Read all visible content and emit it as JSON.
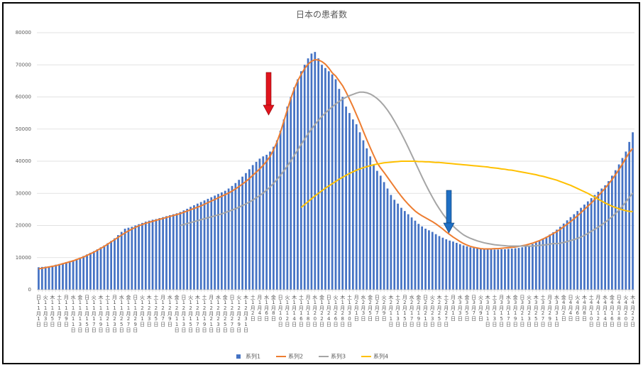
{
  "chart_data": {
    "type": "bar",
    "title": "日本の患者数",
    "categories": [
      "日11月1日",
      null,
      "火11月3日",
      null,
      "木11月5日",
      null,
      "土11月7日",
      null,
      "月11月9日",
      null,
      "水11月11日",
      null,
      "金11月13日",
      null,
      "日11月15日",
      null,
      "火11月17日",
      null,
      "木11月19日",
      null,
      "土11月21日",
      null,
      "月11月23日",
      null,
      "水11月25日",
      null,
      "金11月27日",
      null,
      "日11月29日",
      null,
      "火12月1日",
      null,
      "木12月3日",
      null,
      "土12月5日",
      null,
      "月12月7日",
      null,
      "水12月9日",
      null,
      "金12月11日",
      null,
      "日12月13日",
      null,
      "火12月15日",
      null,
      "木12月17日",
      null,
      "土12月19日",
      null,
      "月12月21日",
      null,
      "水12月23日",
      null,
      "金12月25日",
      null,
      "日12月27日",
      null,
      "火12月29日",
      null,
      "木12月31日",
      null,
      "土1月2日",
      null,
      "月1月4日",
      null,
      "水1月6日",
      null,
      "金1月8日",
      null,
      "日1月10日",
      null,
      "火1月12日",
      null,
      "木1月14日",
      null,
      "土1月16日",
      null,
      "月1月18日",
      null,
      "水1月20日",
      null,
      "金1月22日",
      null,
      "日1月24日",
      null,
      "火1月26日",
      null,
      "木1月28日",
      null,
      "土1月30日",
      null,
      "月2月1日",
      null,
      "水2月3日",
      null,
      "金2月5日",
      null,
      "日2月7日",
      null,
      "火2月9日",
      null,
      "木2月11日",
      null,
      "土2月13日",
      null,
      "月2月15日",
      null,
      "水2月17日",
      null,
      "金2月19日",
      null,
      "日2月21日",
      null,
      "火2月23日",
      null,
      "木2月25日",
      null,
      "土2月27日",
      null,
      "月3月1日",
      null,
      "水3月3日",
      null,
      "金3月5日",
      null,
      "日3月7日",
      null,
      "火3月9日",
      null,
      "木3月11日",
      null,
      "土3月13日",
      null,
      "月3月15日",
      null,
      "水3月17日",
      null,
      "金3月19日",
      null,
      "日3月21日",
      null,
      "火3月23日",
      null,
      "木3月25日",
      null,
      "土3月27日",
      null,
      "月3月29日",
      null,
      "水3月31日",
      null,
      "金4月2日",
      null,
      "日4月4日",
      null,
      "火4月6日",
      null,
      "木4月8日",
      null,
      "土4月10日",
      null,
      "月4月12日",
      null,
      "水4月14日",
      null,
      "金4月16日",
      null,
      "日4月18日",
      null,
      "火4月20日",
      null,
      "木4月22日"
    ],
    "series": [
      {
        "name": "系列1",
        "color": "#4472c4",
        "kind": "bar",
        "values": [
          7000,
          7100,
          7200,
          7300,
          7500,
          7800,
          8000,
          8300,
          8600,
          8900,
          9200,
          9600,
          10000,
          10500,
          11000,
          11500,
          12000,
          12600,
          13200,
          13800,
          14500,
          15200,
          16000,
          17000,
          18000,
          19000,
          19300,
          19600,
          20000,
          20400,
          20800,
          21200,
          21500,
          21800,
          22000,
          22300,
          22600,
          22900,
          23200,
          23500,
          23800,
          24200,
          24700,
          25200,
          25800,
          26300,
          26800,
          27300,
          27800,
          28300,
          28800,
          29300,
          29800,
          30300,
          30800,
          31500,
          32300,
          33200,
          34200,
          35200,
          36300,
          37500,
          38800,
          39800,
          40800,
          41500,
          42000,
          43000,
          44500,
          46500,
          49500,
          53000,
          57000,
          60000,
          63000,
          65500,
          68000,
          70000,
          72000,
          73500,
          74000,
          72000,
          70000,
          69000,
          68000,
          67000,
          65500,
          62500,
          60000,
          57000,
          55000,
          53000,
          51500,
          49000,
          46500,
          44000,
          41500,
          39000,
          37000,
          35500,
          33500,
          31500,
          29500,
          28000,
          26800,
          25500,
          24500,
          23500,
          22500,
          21500,
          20500,
          19700,
          19000,
          18500,
          18000,
          17300,
          16700,
          16200,
          15700,
          15300,
          15000,
          14600,
          14200,
          13800,
          13500,
          13200,
          13000,
          12900,
          12800,
          12700,
          12600,
          12500,
          12500,
          12500,
          12600,
          12600,
          12700,
          12800,
          12900,
          13000,
          13200,
          13500,
          13800,
          14200,
          14700,
          15200,
          15800,
          16500,
          17200,
          17900,
          18700,
          19600,
          20600,
          21600,
          22600,
          23500,
          24500,
          25500,
          26500,
          27500,
          28500,
          29500,
          30500,
          31500,
          32500,
          33800,
          35500,
          37200,
          39000,
          41000,
          43000,
          46000,
          49000
        ]
      },
      {
        "name": "系列2",
        "color": "#ed7d31",
        "kind": "line",
        "values": [
          6500,
          6700,
          6900,
          7100,
          7300,
          7500,
          7800,
          8100,
          8400,
          8700,
          9000,
          9400,
          9800,
          10200,
          10700,
          11200,
          11700,
          12300,
          12900,
          13500,
          14200,
          14900,
          15600,
          16300,
          17000,
          17700,
          18300,
          18900,
          19400,
          19900,
          20300,
          20700,
          21000,
          21300,
          21600,
          21900,
          22200,
          22500,
          22800,
          23100,
          23400,
          23700,
          24100,
          24500,
          24900,
          25300,
          25700,
          26100,
          26600,
          27100,
          27600,
          28100,
          28600,
          29100,
          29600,
          30100,
          30700,
          31400,
          32100,
          32900,
          33700,
          34600,
          35600,
          36600,
          37600,
          38700,
          40000,
          41500,
          43500,
          46000,
          49000,
          52500,
          56000,
          59500,
          62500,
          65000,
          67000,
          68800,
          70200,
          71100,
          71600,
          71500,
          71000,
          70200,
          69000,
          67500,
          66500,
          65000,
          63500,
          61500,
          59300,
          57000,
          54500,
          52000,
          49300,
          46700,
          44200,
          41800,
          39500,
          37900,
          36500,
          35000,
          33500,
          32000,
          30500,
          29100,
          27800,
          26600,
          25500,
          24500,
          23700,
          23000,
          22400,
          21800,
          21200,
          20500,
          19700,
          18900,
          18000,
          17200,
          16400,
          15700,
          15000,
          14400,
          13900,
          13500,
          13200,
          13000,
          12800,
          12700,
          12700,
          12700,
          12800,
          12800,
          12900,
          13000,
          13100,
          13200,
          13300,
          13500,
          13700,
          13900,
          14200,
          14500,
          14900,
          15300,
          15800,
          16300,
          16900,
          17500,
          18100,
          18800,
          19600,
          20400,
          21200,
          22100,
          23000,
          24000,
          25000,
          26000,
          27000,
          28100,
          29200,
          30400,
          31600,
          32900,
          34300,
          35800,
          37400,
          39100,
          40900,
          42700,
          44000
        ]
      },
      {
        "name": "系列3",
        "color": "#a5a5a5",
        "kind": "line",
        "values": [
          null,
          null,
          null,
          null,
          null,
          null,
          null,
          null,
          null,
          null,
          null,
          null,
          null,
          null,
          null,
          null,
          null,
          null,
          null,
          null,
          null,
          null,
          null,
          null,
          null,
          null,
          null,
          null,
          null,
          null,
          null,
          null,
          null,
          null,
          null,
          null,
          null,
          null,
          null,
          null,
          null,
          20000,
          20300,
          20600,
          20900,
          21200,
          21500,
          21800,
          22100,
          22400,
          22700,
          23000,
          23300,
          23600,
          24000,
          24400,
          24800,
          25200,
          25700,
          26200,
          26700,
          27300,
          27900,
          28600,
          29300,
          30100,
          31000,
          32000,
          33100,
          34300,
          35600,
          37000,
          38500,
          40100,
          41800,
          43500,
          45200,
          46900,
          48500,
          50000,
          51400,
          52700,
          53900,
          55000,
          56000,
          56900,
          57800,
          58600,
          59300,
          59900,
          60400,
          60800,
          61200,
          61500,
          61500,
          61300,
          60900,
          60300,
          59500,
          58500,
          57300,
          55900,
          54300,
          52500,
          50600,
          48600,
          46500,
          44300,
          42000,
          39700,
          37400,
          35100,
          32900,
          30800,
          28800,
          26900,
          25200,
          23600,
          22200,
          20900,
          19800,
          18800,
          17900,
          17100,
          16500,
          16000,
          15600,
          15200,
          14900,
          14600,
          14400,
          14200,
          14000,
          13900,
          13800,
          13700,
          13600,
          13600,
          13600,
          13600,
          13600,
          13600,
          13600,
          13600,
          13700,
          13800,
          13900,
          14000,
          14200,
          14400,
          14300,
          14500,
          14700,
          15000,
          15300,
          15600,
          16000,
          16400,
          16900,
          17500,
          18200,
          18800,
          19500,
          20200,
          21000,
          21800,
          22700,
          23700,
          24800,
          26000,
          27300,
          28700,
          30100
        ]
      },
      {
        "name": "系列4",
        "color": "#ffc000",
        "kind": "line",
        "values": [
          null,
          null,
          null,
          null,
          null,
          null,
          null,
          null,
          null,
          null,
          null,
          null,
          null,
          null,
          null,
          null,
          null,
          null,
          null,
          null,
          null,
          null,
          null,
          null,
          null,
          null,
          null,
          null,
          null,
          null,
          null,
          null,
          null,
          null,
          null,
          null,
          null,
          null,
          null,
          null,
          null,
          null,
          null,
          null,
          null,
          null,
          null,
          null,
          null,
          null,
          null,
          null,
          null,
          null,
          null,
          null,
          null,
          null,
          null,
          null,
          null,
          null,
          null,
          null,
          null,
          null,
          null,
          null,
          null,
          null,
          null,
          null,
          null,
          null,
          null,
          null,
          25600,
          26500,
          27400,
          28300,
          29200,
          30000,
          30800,
          31600,
          32300,
          33000,
          33700,
          34400,
          35000,
          35600,
          36200,
          36700,
          37200,
          37600,
          38000,
          38300,
          38600,
          38900,
          39100,
          39300,
          39500,
          39600,
          39700,
          39800,
          39900,
          40000,
          40000,
          40000,
          40000,
          40000,
          39900,
          39900,
          39800,
          39800,
          39700,
          39600,
          39600,
          39500,
          39400,
          39300,
          39200,
          39100,
          39000,
          38900,
          38800,
          38700,
          38600,
          38500,
          38400,
          38300,
          38200,
          38000,
          37900,
          37800,
          37600,
          37500,
          37300,
          37200,
          37000,
          36800,
          36600,
          36400,
          36200,
          36000,
          35800,
          35500,
          35300,
          35000,
          34700,
          34400,
          34100,
          33700,
          33300,
          32900,
          32500,
          32000,
          31500,
          31000,
          30500,
          30000,
          29400,
          28800,
          28200,
          27600,
          27000,
          26500,
          26000,
          25600,
          25200,
          24900,
          24600,
          24400,
          24300
        ]
      }
    ],
    "ylim": [
      0,
      80000
    ],
    "yticks": [
      0,
      10000,
      20000,
      30000,
      40000,
      50000,
      60000,
      70000,
      80000
    ],
    "grid": true,
    "legend": "bottom"
  }
}
